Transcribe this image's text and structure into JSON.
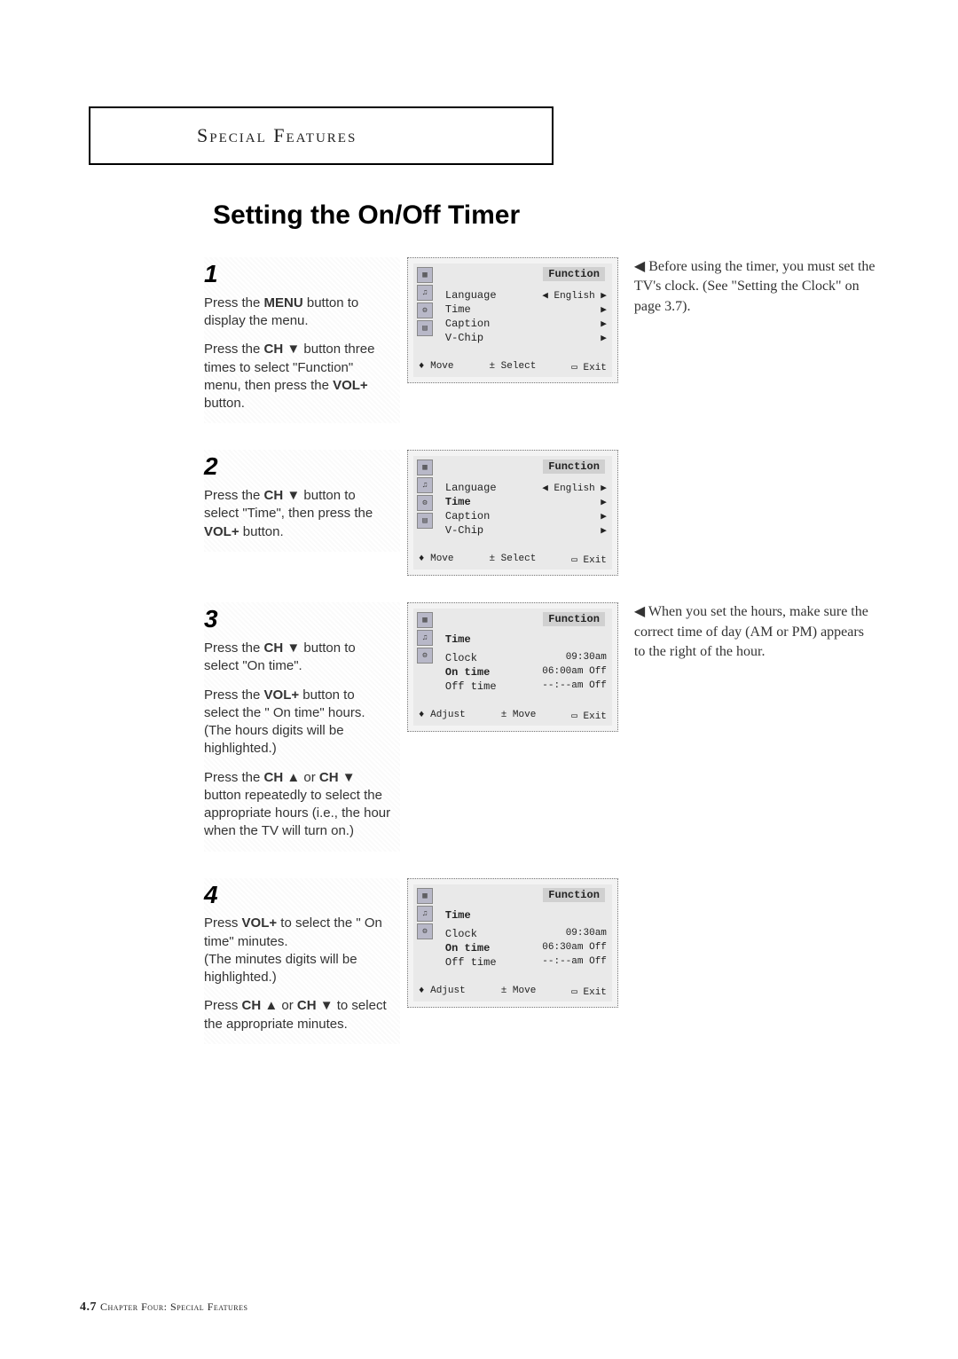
{
  "chapter_label": "Special Features",
  "title": "Setting the On/Off Timer",
  "steps": [
    {
      "num": "1",
      "paragraphs": [
        "Press the <b>MENU</b> button to display the menu.",
        "Press the <b>CH ▼</b> button three times to select \"Function\" menu, then press the <b>VOL+</b> button."
      ],
      "note": "◀  Before using the timer, you must set the TV's clock. (See \"Setting the Clock\" on page 3.7).",
      "osd": {
        "title": "Function",
        "icons": 4,
        "rows": [
          {
            "label": "Language",
            "value": "◀ English ▶"
          },
          {
            "label": "Time",
            "value": "▶"
          },
          {
            "label": "Caption",
            "value": "▶"
          },
          {
            "label": "V-Chip",
            "value": "▶"
          }
        ],
        "footer": [
          "♦ Move",
          "± Select",
          "▭ Exit"
        ]
      }
    },
    {
      "num": "2",
      "paragraphs": [
        "Press the <b>CH ▼</b> button to select \"Time\", then press the  <b>VOL+</b> button."
      ],
      "note": "",
      "osd": {
        "title": "Function",
        "icons": 4,
        "rows": [
          {
            "label": "Language",
            "value": "◀ English ▶"
          },
          {
            "label": "Time",
            "value": "▶",
            "hl": true
          },
          {
            "label": "Caption",
            "value": "▶"
          },
          {
            "label": "V-Chip",
            "value": "▶"
          }
        ],
        "footer": [
          "♦ Move",
          "± Select",
          "▭ Exit"
        ]
      }
    },
    {
      "num": "3",
      "paragraphs": [
        "Press the <b>CH ▼</b> button  to select \"On time\".",
        "Press the <b>VOL+</b> button to select the \" On time\" hours.\n(The hours digits will be highlighted.)",
        "Press the <b>CH ▲</b> or <b>CH ▼</b> button  repeatedly to select the appropriate hours (i.e., the hour when the TV will turn on.)"
      ],
      "note": "◀  When you set the hours, make sure the correct time of day (AM or PM) appears to the right of the hour.",
      "osd": {
        "title": "Function",
        "sub": "Time",
        "icons": 3,
        "rows": [
          {
            "label": "Clock",
            "value": "09:30am"
          },
          {
            "label": "On time",
            "value": "06:00am Off",
            "hl": true
          },
          {
            "label": "Off time",
            "value": "--:--am Off"
          }
        ],
        "footer": [
          "♦ Adjust",
          "± Move",
          "▭ Exit"
        ]
      }
    },
    {
      "num": "4",
      "paragraphs": [
        "Press <b>VOL+</b> to select the \" On time\"  minutes.\n(The minutes digits will be highlighted.)",
        "Press <b>CH ▲</b> or <b>CH ▼</b> to select the appropriate minutes."
      ],
      "note": "",
      "osd": {
        "title": "Function",
        "sub": "Time",
        "icons": 3,
        "rows": [
          {
            "label": "Clock",
            "value": "09:30am"
          },
          {
            "label": "On time",
            "value": "06:30am Off",
            "hl": true
          },
          {
            "label": "Off time",
            "value": "--:--am Off"
          }
        ],
        "footer": [
          "♦ Adjust",
          "± Move",
          "▭ Exit"
        ]
      }
    }
  ],
  "footer": {
    "page": "4.7",
    "text": "Chapter Four: Special Features"
  }
}
